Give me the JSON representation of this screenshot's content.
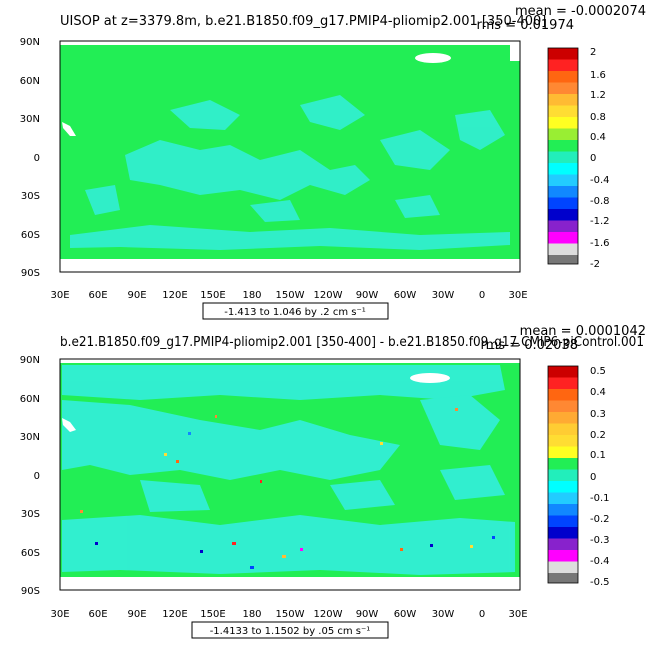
{
  "panels": [
    {
      "title": "UISOP at z=3379.8m, b.e21.B1850.f09_g17.PMIP4-pliomip2.001 [350-400]",
      "mean": "mean = -0.0002074",
      "rms": "rms = 0.01974",
      "range_label": "-1.413 to 1.046 by .2 cm s⁻¹",
      "colorbar_labels": [
        "2",
        "1.6",
        "1.2",
        "0.8",
        "0.4",
        "0",
        "-0.4",
        "-0.8",
        "-1.2",
        "-1.6",
        "-2"
      ]
    },
    {
      "title": "b.e21.B1850.f09_g17.PMIP4-pliomip2.001 [350-400] - b.e21.B1850.f09_g17.CMIP6-piControl.001",
      "mean": "mean = 0.0001042",
      "rms": "rms = 0.02038",
      "range_label": "-1.4133 to 1.1502 by .05 cm s⁻¹",
      "colorbar_labels": [
        "0.5",
        "0.4",
        "0.3",
        "0.2",
        "0.1",
        "0",
        "-0.1",
        "-0.2",
        "-0.3",
        "-0.4",
        "-0.5"
      ]
    }
  ],
  "lat_labels": [
    "90N",
    "60N",
    "30N",
    "0",
    "30S",
    "60S",
    "90S"
  ],
  "lon_labels": [
    "30E",
    "60E",
    "90E",
    "120E",
    "150E",
    "180",
    "150W",
    "120W",
    "90W",
    "60W",
    "30W",
    "0",
    "30E"
  ],
  "colors": {
    "ocean_zero": "#22ee55",
    "slight_negative": "#33eedd",
    "land": "#ffffff",
    "colorbar_swatches": [
      "#cc0000",
      "#ff2222",
      "#ff6611",
      "#ff8833",
      "#ffbb33",
      "#ffff22",
      "#99ee33",
      "#22ee55",
      "#22eebb",
      "#00ffff",
      "#22ccff",
      "#1188ff",
      "#0044ff",
      "#0000cc",
      "#8822cc",
      "#ff00ff",
      "#dddddd",
      "#777777"
    ]
  }
}
